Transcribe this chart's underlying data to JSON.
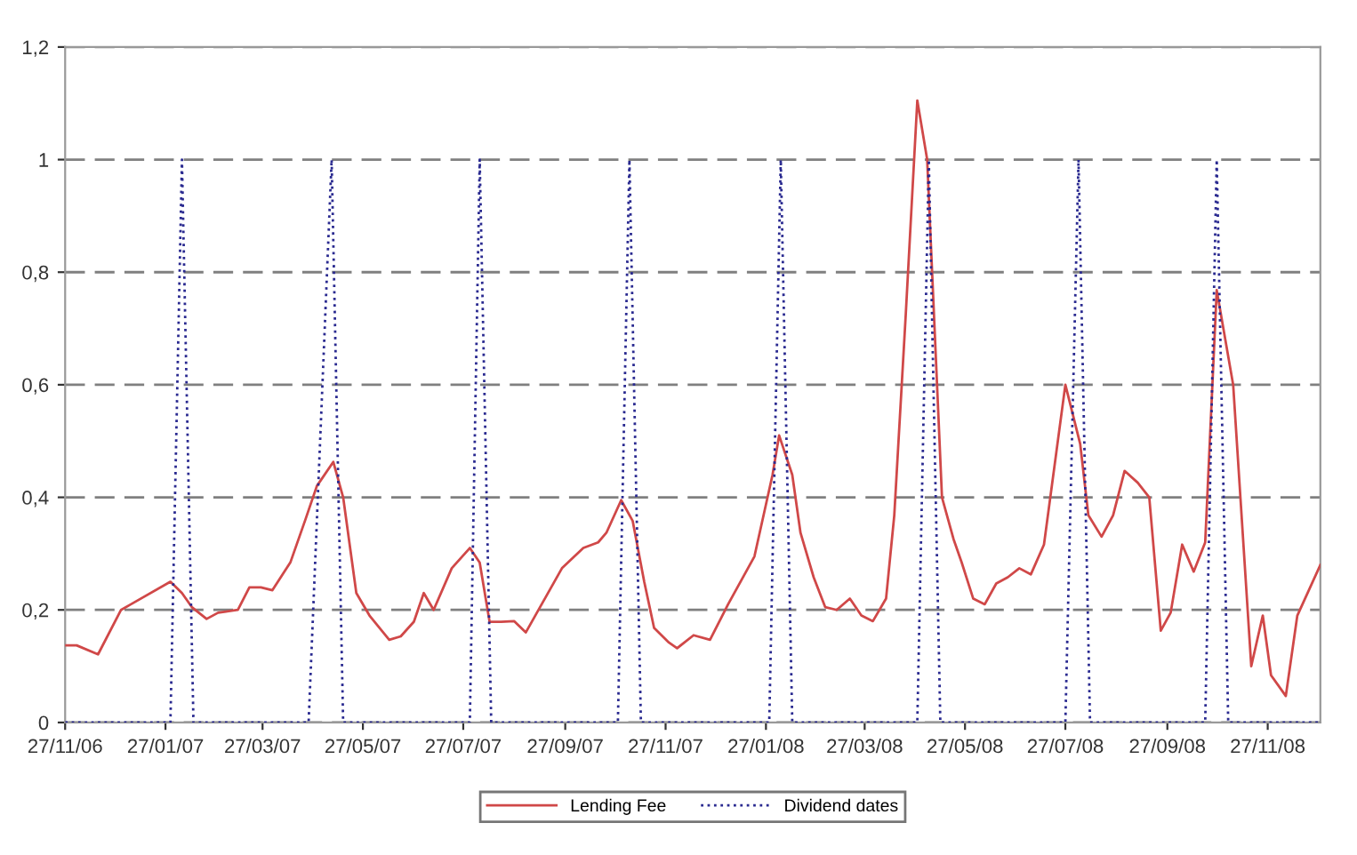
{
  "chart_data": {
    "type": "line",
    "xlim": [
      "2006-11-27",
      "2008-12-29"
    ],
    "xticks": [
      {
        "value": "2006-11-27",
        "label": "27/11/06"
      },
      {
        "value": "2007-01-27",
        "label": "27/01/07"
      },
      {
        "value": "2007-03-27",
        "label": "27/03/07"
      },
      {
        "value": "2007-05-27",
        "label": "27/05/07"
      },
      {
        "value": "2007-07-27",
        "label": "27/07/07"
      },
      {
        "value": "2007-09-27",
        "label": "27/09/07"
      },
      {
        "value": "2007-11-27",
        "label": "27/11/07"
      },
      {
        "value": "2008-01-27",
        "label": "27/01/08"
      },
      {
        "value": "2008-03-27",
        "label": "27/03/08"
      },
      {
        "value": "2008-05-27",
        "label": "27/05/08"
      },
      {
        "value": "2008-07-27",
        "label": "27/07/08"
      },
      {
        "value": "2008-09-27",
        "label": "27/09/08"
      },
      {
        "value": "2008-11-27",
        "label": "27/11/08"
      }
    ],
    "ylim": [
      0,
      1.2
    ],
    "yticks": [
      0,
      {
        "value": 0.2,
        "label": "0,2"
      },
      {
        "value": 0.4,
        "label": "0,4"
      },
      {
        "value": 0.6,
        "label": "0,6"
      },
      {
        "value": 0.8,
        "label": "0,8"
      },
      1,
      {
        "value": 1.2,
        "label": "1,2"
      }
    ],
    "grid": "y",
    "legend": "bottom",
    "series": [
      {
        "name": "Lending Fee",
        "color": "#d04848",
        "line_style": "solid",
        "x": [
          "2006-11-27",
          "2006-12-04",
          "2006-12-17",
          "2006-12-31",
          "2007-01-06",
          "2007-01-30",
          "2007-02-06",
          "2007-02-12",
          "2007-02-21",
          "2007-02-28",
          "2007-03-12",
          "2007-03-19",
          "2007-03-26",
          "2007-04-02",
          "2007-04-13",
          "2007-04-22",
          "2007-04-29",
          "2007-05-09",
          "2007-05-15",
          "2007-05-23",
          "2007-05-31",
          "2007-06-12",
          "2007-06-19",
          "2007-06-27",
          "2007-07-03",
          "2007-07-09",
          "2007-07-20",
          "2007-07-31",
          "2007-08-06",
          "2007-08-12",
          "2007-08-19",
          "2007-08-27",
          "2007-09-03",
          "2007-09-25",
          "2007-10-08",
          "2007-10-17",
          "2007-10-22",
          "2007-10-31",
          "2007-11-07",
          "2007-11-14",
          "2007-11-20",
          "2007-11-29",
          "2007-12-04",
          "2007-12-14",
          "2007-12-24",
          "2008-01-04",
          "2008-01-20",
          "2008-01-31",
          "2008-02-04",
          "2008-02-12",
          "2008-02-17",
          "2008-02-25",
          "2008-03-03",
          "2008-03-10",
          "2008-03-18",
          "2008-03-25",
          "2008-04-01",
          "2008-04-09",
          "2008-04-14",
          "2008-04-21",
          "2008-04-28",
          "2008-05-04",
          "2008-05-13",
          "2008-05-20",
          "2008-05-25",
          "2008-06-01",
          "2008-06-08",
          "2008-06-15",
          "2008-06-22",
          "2008-06-29",
          "2008-07-06",
          "2008-07-14",
          "2008-07-27",
          "2008-08-05",
          "2008-08-10",
          "2008-08-18",
          "2008-08-25",
          "2008-09-01",
          "2008-09-09",
          "2008-09-16",
          "2008-09-23",
          "2008-09-29",
          "2008-10-06",
          "2008-10-13",
          "2008-10-20",
          "2008-10-27",
          "2008-11-06",
          "2008-11-17",
          "2008-11-24",
          "2008-11-29",
          "2008-12-08",
          "2008-12-15",
          "2008-12-29"
        ],
        "values": [
          0.137,
          0.137,
          0.121,
          0.2,
          0.21,
          0.25,
          0.23,
          0.205,
          0.184,
          0.195,
          0.2,
          0.24,
          0.24,
          0.235,
          0.285,
          0.36,
          0.42,
          0.463,
          0.4,
          0.23,
          0.19,
          0.147,
          0.153,
          0.179,
          0.23,
          0.2,
          0.274,
          0.31,
          0.284,
          0.179,
          0.179,
          0.18,
          0.16,
          0.274,
          0.31,
          0.32,
          0.337,
          0.395,
          0.358,
          0.25,
          0.168,
          0.142,
          0.132,
          0.155,
          0.147,
          0.21,
          0.295,
          0.44,
          0.51,
          0.44,
          0.337,
          0.258,
          0.205,
          0.2,
          0.22,
          0.19,
          0.18,
          0.22,
          0.368,
          0.726,
          1.105,
          1.0,
          0.4,
          0.326,
          0.284,
          0.22,
          0.21,
          0.247,
          0.258,
          0.274,
          0.263,
          0.316,
          0.6,
          0.495,
          0.368,
          0.33,
          0.368,
          0.447,
          0.426,
          0.4,
          0.163,
          0.195,
          0.316,
          0.268,
          0.32,
          0.768,
          0.6,
          0.1,
          0.19,
          0.084,
          0.047,
          0.19,
          0.28
        ]
      },
      {
        "name": "Dividend dates",
        "color": "#2a2a90",
        "line_style": "dotted",
        "x": [
          "2006-11-27",
          "2007-01-30",
          "2007-02-06",
          "2007-02-13",
          "2007-04-24",
          "2007-05-08",
          "2007-05-15",
          "2007-07-31",
          "2007-08-06",
          "2007-08-13",
          "2007-10-29",
          "2007-11-05",
          "2007-11-12",
          "2008-01-29",
          "2008-02-05",
          "2008-02-12",
          "2008-04-28",
          "2008-05-05",
          "2008-05-12",
          "2008-07-27",
          "2008-08-04",
          "2008-08-11",
          "2008-10-20",
          "2008-10-27",
          "2008-11-03",
          "2008-12-29"
        ],
        "values": [
          0,
          0,
          1,
          0,
          0,
          1,
          0,
          0,
          1,
          0,
          0,
          1,
          0,
          0,
          1,
          0,
          0,
          1,
          0,
          0,
          1,
          0,
          0,
          1,
          0,
          0
        ]
      }
    ]
  }
}
